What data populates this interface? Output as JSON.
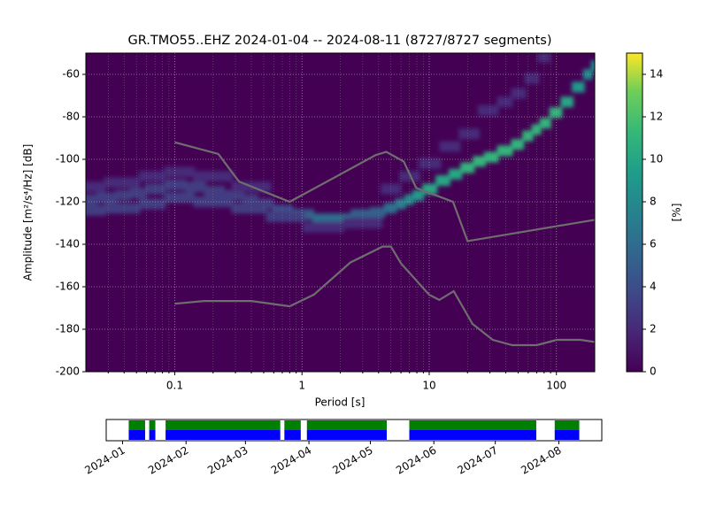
{
  "chart_data": {
    "type": "heatmap",
    "title": "GR.TMO55..EHZ   2024-01-04 -- 2024-08-11  (8727/8727 segments)",
    "xlabel": "Period [s]",
    "ylabel": "Amplitude [m²/s⁴/Hz] [dB]",
    "xscale": "log",
    "xlim": [
      0.02,
      200
    ],
    "ylim": [
      -200,
      -50
    ],
    "xticks": [
      0.1,
      1,
      10,
      100
    ],
    "yticks": [
      -200,
      -180,
      -160,
      -140,
      -120,
      -100,
      -80,
      -60
    ],
    "grid": true,
    "colorbar": {
      "label": "[%]",
      "lim": [
        0,
        15
      ],
      "ticks": [
        0,
        2,
        4,
        6,
        8,
        10,
        12,
        14
      ],
      "colormap": "viridis"
    },
    "density": [
      {
        "x": [
          0.02,
          0.03,
          0.04,
          0.05,
          0.07,
          0.1,
          0.15,
          0.2,
          0.3,
          0.4,
          0.5,
          0.7,
          1,
          1.5,
          2,
          3,
          4,
          5,
          6,
          7,
          8,
          10,
          13,
          16,
          20,
          25,
          30,
          40,
          50,
          60,
          70,
          80,
          100,
          120,
          150,
          180,
          200
        ],
        "y": [
          -119,
          -118,
          -117,
          -116,
          -114,
          -112,
          -113,
          -115,
          -117,
          -119,
          -121,
          -124,
          -126,
          -128,
          -128,
          -126,
          -125,
          -123,
          -121,
          -119,
          -117,
          -114,
          -110,
          -107,
          -104,
          -101,
          -99,
          -96,
          -93,
          -89,
          -86,
          -83,
          -78,
          -73,
          -66,
          -60,
          -56
        ],
        "values": [
          3,
          3,
          3,
          3,
          3,
          3,
          3,
          3,
          3,
          3,
          3,
          4,
          5,
          6,
          6,
          5,
          5,
          6,
          7,
          8,
          9,
          10,
          10,
          10,
          11,
          11,
          11,
          11,
          11,
          11,
          11,
          11,
          11,
          10,
          9,
          8,
          8
        ]
      },
      {
        "x": [
          0.02,
          0.04,
          0.07,
          0.1,
          0.2,
          0.4,
          0.7,
          1.5,
          3
        ],
        "y": [
          -124,
          -123,
          -121,
          -118,
          -120,
          -123,
          -127,
          -132,
          -130
        ],
        "values": [
          3,
          3,
          3,
          3,
          3,
          3,
          3,
          2,
          2
        ]
      },
      {
        "x": [
          0.02,
          0.04,
          0.07,
          0.1,
          0.2,
          0.4
        ],
        "y": [
          -113,
          -111,
          -108,
          -106,
          -108,
          -113
        ],
        "values": [
          2,
          2,
          2,
          2,
          2,
          2
        ]
      },
      {
        "x": [
          5,
          7,
          10,
          15,
          20,
          30,
          40,
          50,
          65,
          80
        ],
        "y": [
          -114,
          -108,
          -102,
          -94,
          -88,
          -77,
          -73,
          -69,
          -62,
          -52
        ],
        "values": [
          2,
          2,
          2,
          2,
          2,
          2,
          2,
          2,
          2,
          2
        ]
      }
    ],
    "noise_models": [
      {
        "color": "#6e6e6e",
        "x": [
          0.1,
          0.22,
          0.32,
          0.8,
          3.8,
          4.6,
          6.3,
          7.9,
          15.4,
          20,
          200
        ],
        "values": [
          -92,
          -97.5,
          -110.5,
          -120,
          -98,
          -96.5,
          -101,
          -113.5,
          -120,
          -138.5,
          -128.5
        ]
      },
      {
        "color": "#6e6e6e",
        "x": [
          0.1,
          0.17,
          0.4,
          0.8,
          1.24,
          2.4,
          4.3,
          5,
          6,
          10,
          12,
          15.6,
          21.9,
          31.6,
          45,
          70,
          101,
          154,
          200
        ],
        "values": [
          -168,
          -166.7,
          -166.7,
          -169.2,
          -163.7,
          -148.6,
          -141.1,
          -141.1,
          -149,
          -163.8,
          -166.2,
          -162.1,
          -177.5,
          -185,
          -187.5,
          -187.5,
          -185,
          -185,
          -186
        ]
      }
    ],
    "timeline": {
      "xlim": [
        "2023-12-24",
        "2024-08-22"
      ],
      "xticks": [
        {
          "value": "2024-01-01",
          "label": "2024-01"
        },
        {
          "value": "2024-02-01",
          "label": "2024-02"
        },
        {
          "value": "2024-03-01",
          "label": "2024-03"
        },
        {
          "value": "2024-04-01",
          "label": "2024-04"
        },
        {
          "value": "2024-05-01",
          "label": "2024-05"
        },
        {
          "value": "2024-06-01",
          "label": "2024-06"
        },
        {
          "value": "2024-07-01",
          "label": "2024-07"
        },
        {
          "value": "2024-08-01",
          "label": "2024-08"
        }
      ],
      "segments": [
        [
          "2024-01-04",
          "2024-01-12"
        ],
        [
          "2024-01-14",
          "2024-01-17"
        ],
        [
          "2024-01-22",
          "2024-03-18"
        ],
        [
          "2024-03-20",
          "2024-03-28"
        ],
        [
          "2024-03-31",
          "2024-05-09"
        ],
        [
          "2024-05-20",
          "2024-07-21"
        ],
        [
          "2024-07-30",
          "2024-08-11"
        ]
      ],
      "colors": [
        "#008000",
        "#0000ff"
      ]
    }
  }
}
